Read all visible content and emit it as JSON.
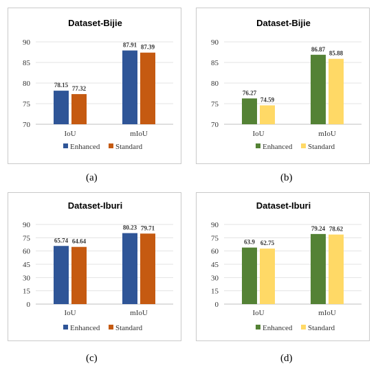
{
  "chart_data": [
    {
      "type": "bar",
      "title": "Dataset-Bijie",
      "categories": [
        "IoU",
        "mIoU"
      ],
      "series": [
        {
          "name": "Enhanced",
          "values": [
            78.15,
            87.91
          ],
          "labels": [
            "78.15",
            "87.91"
          ],
          "color": "#2f5597"
        },
        {
          "name": "Standard",
          "values": [
            77.32,
            87.39
          ],
          "labels": [
            "77.32",
            "87.39"
          ],
          "color": "#c55a11"
        }
      ],
      "yticks": [
        "70",
        "75",
        "80",
        "85",
        "90"
      ],
      "ylim": [
        70,
        90
      ],
      "grid": true,
      "legend": "bottom",
      "caption": "(a)"
    },
    {
      "type": "bar",
      "title": "Dataset-Bijie",
      "categories": [
        "IoU",
        "mIoU"
      ],
      "series": [
        {
          "name": "Enhanced",
          "values": [
            76.27,
            86.87
          ],
          "labels": [
            "76.27",
            "86.87"
          ],
          "color": "#548235"
        },
        {
          "name": "Standard",
          "values": [
            74.59,
            85.88
          ],
          "labels": [
            "74.59",
            "85.88"
          ],
          "color": "#ffd966"
        }
      ],
      "yticks": [
        "70",
        "75",
        "80",
        "85",
        "90"
      ],
      "ylim": [
        70,
        90
      ],
      "grid": true,
      "legend": "bottom",
      "caption": "(b)"
    },
    {
      "type": "bar",
      "title": "Dataset-Iburi",
      "categories": [
        "IoU",
        "mIoU"
      ],
      "series": [
        {
          "name": "Enhanced",
          "values": [
            65.74,
            80.23
          ],
          "labels": [
            "65.74",
            "80.23"
          ],
          "color": "#2f5597"
        },
        {
          "name": "Standard",
          "values": [
            64.64,
            79.71
          ],
          "labels": [
            "64.64",
            "79.71"
          ],
          "color": "#c55a11"
        }
      ],
      "yticks": [
        "0",
        "15",
        "30",
        "45",
        "60",
        "75",
        "90"
      ],
      "ylim": [
        0,
        90
      ],
      "grid": true,
      "legend": "bottom",
      "caption": "(c)"
    },
    {
      "type": "bar",
      "title": "Dataset-Iburi",
      "categories": [
        "IoU",
        "mIoU"
      ],
      "series": [
        {
          "name": "Enhanced",
          "values": [
            63.9,
            79.24
          ],
          "labels": [
            "63.9",
            "79.24"
          ],
          "color": "#548235"
        },
        {
          "name": "Standard",
          "values": [
            62.75,
            78.62
          ],
          "labels": [
            "62.75",
            "78.62"
          ],
          "color": "#ffd966"
        }
      ],
      "yticks": [
        "0",
        "15",
        "30",
        "45",
        "60",
        "75",
        "90"
      ],
      "ylim": [
        0,
        90
      ],
      "grid": true,
      "legend": "bottom",
      "caption": "(d)"
    }
  ]
}
